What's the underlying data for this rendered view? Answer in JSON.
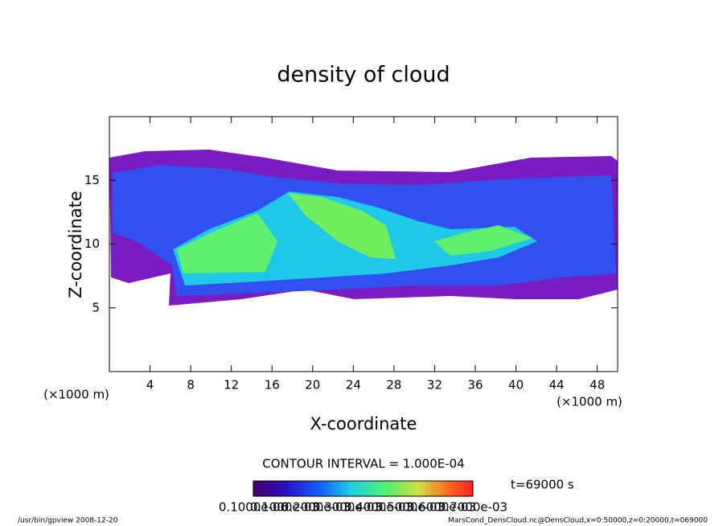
{
  "chart_data": {
    "type": "contour",
    "title": "density of cloud",
    "x_label": "X-coordinate",
    "y_label": "Z-coordinate",
    "x_unit": "(×1000 m)",
    "y_unit": "(×1000 m)",
    "xlim": [
      0,
      50
    ],
    "xticks": [
      4,
      8,
      12,
      16,
      20,
      24,
      28,
      32,
      36,
      40,
      44,
      48
    ],
    "ylim": [
      0,
      20
    ],
    "yticks": [
      5,
      10,
      15
    ],
    "contour_interval": "CONTOUR INTERVAL = 1.000E-04",
    "time": "t=69000 s",
    "colorbar_labels": [
      "0.1000e-06",
      "0.1000e-03",
      "0.2000e-03",
      "0.3000e-03",
      "0.4000e-03",
      "0.5000e-03",
      "0.6000e-03",
      "0.7000e-03"
    ],
    "footer_left": "/usr/bin/gpview  2008-12-20",
    "footer_right": "MarsCond_DensCloud.nc@DensCloud,x=0:50000,z=0:20000,t=069000"
  }
}
